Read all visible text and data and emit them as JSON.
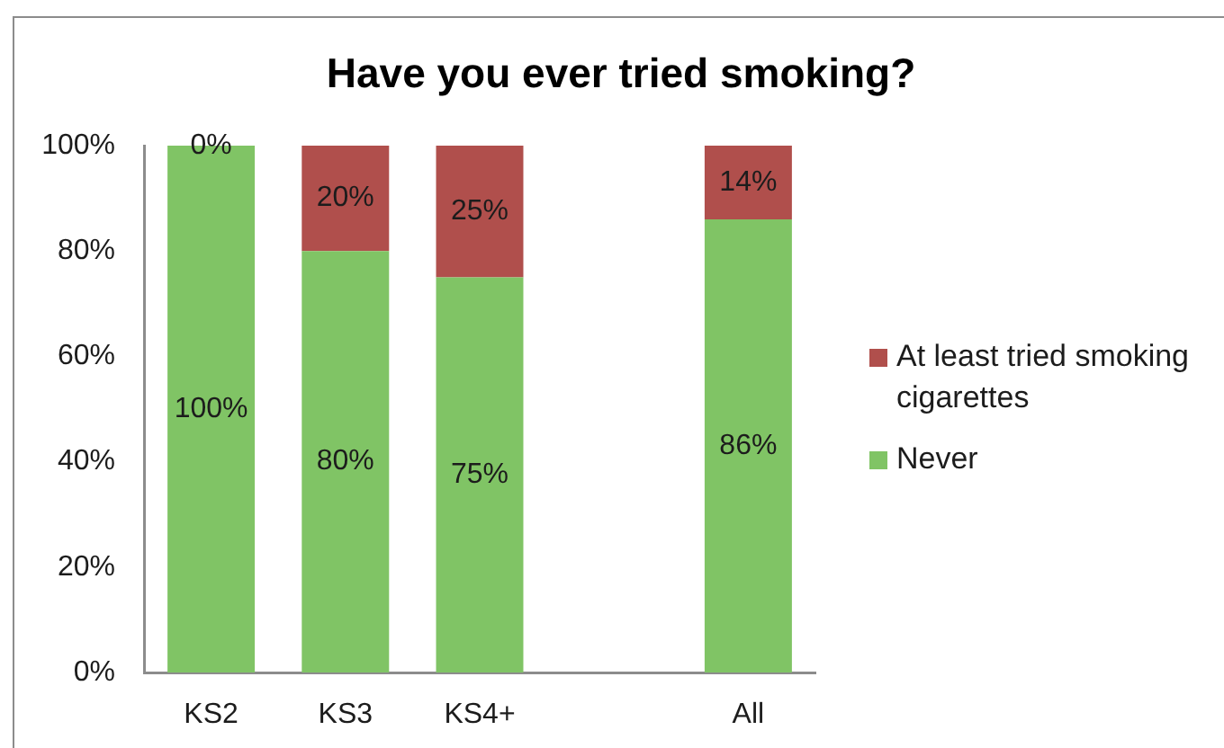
{
  "chart_data": {
    "type": "bar",
    "title": "Have you ever tried smoking?",
    "categories": [
      "KS2",
      "KS3",
      "KS4+",
      null,
      "All"
    ],
    "series": [
      {
        "name": "Never",
        "color": "#80c465",
        "values": [
          100,
          80,
          75,
          null,
          86
        ],
        "value_labels": [
          "100%",
          "80%",
          "75%",
          null,
          "86%"
        ]
      },
      {
        "name": "At least tried smoking cigarettes",
        "color": "#b04f4c",
        "values": [
          0,
          20,
          25,
          null,
          14
        ],
        "value_labels": [
          "0%",
          "20%",
          "25%",
          null,
          "14%"
        ]
      }
    ],
    "stacked": true,
    "ylim": [
      0,
      100
    ],
    "yticks": [
      {
        "value": 0,
        "label": "0%"
      },
      {
        "value": 20,
        "label": "20%"
      },
      {
        "value": 40,
        "label": "40%"
      },
      {
        "value": 60,
        "label": "60%"
      },
      {
        "value": 80,
        "label": "80%"
      },
      {
        "value": 100,
        "label": "100%"
      }
    ],
    "grid": false,
    "legend": "right"
  }
}
